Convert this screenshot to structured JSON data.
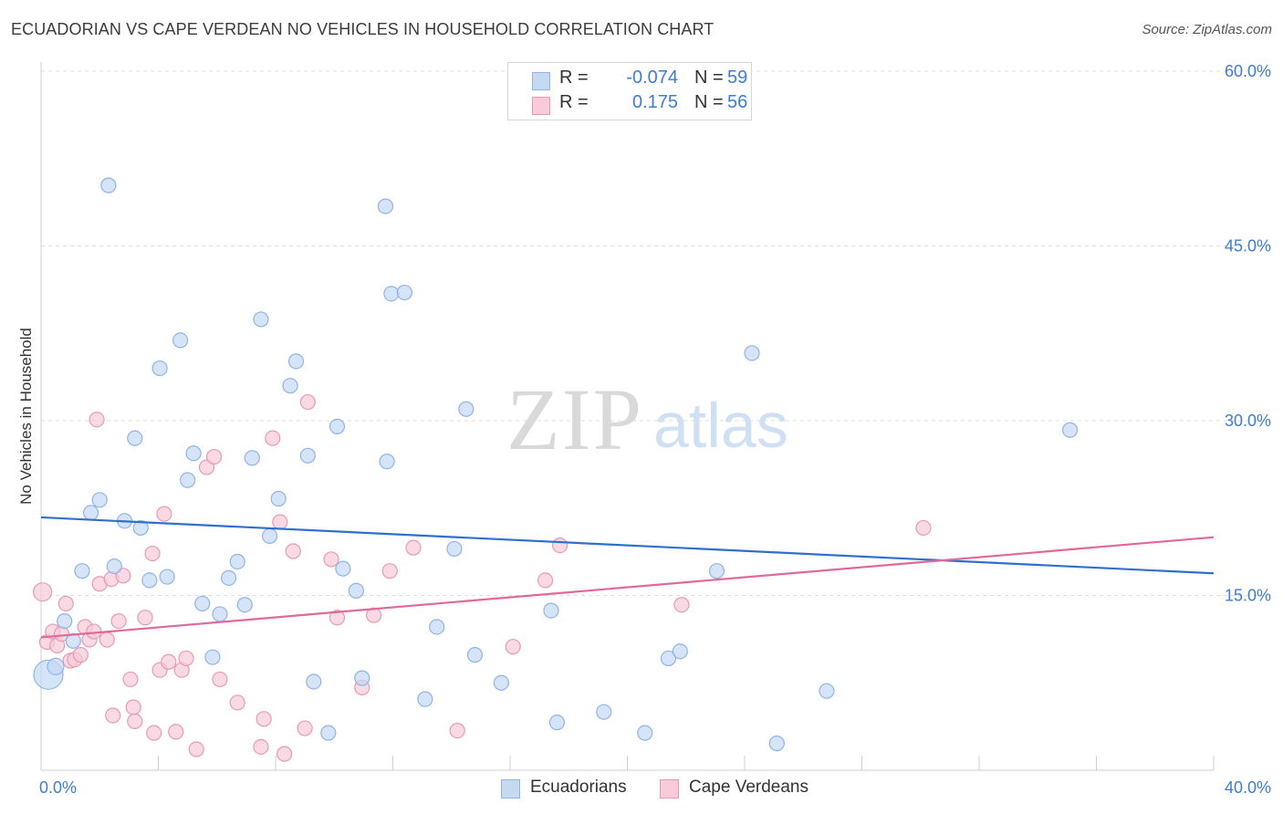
{
  "title": "ECUADORIAN VS CAPE VERDEAN NO VEHICLES IN HOUSEHOLD CORRELATION CHART",
  "source": "Source: ZipAtlas.com",
  "watermark": {
    "zip": "ZIP",
    "atlas": "atlas"
  },
  "stats": {
    "row1": {
      "r_label": "R =",
      "r_value": "-0.074",
      "n_label": "N =",
      "n_value": "59"
    },
    "row2": {
      "r_label": "R =",
      "r_value": "0.175",
      "n_label": "N =",
      "n_value": "56"
    }
  },
  "legend": {
    "ecuadorians": "Ecuadorians",
    "cape_verdeans": "Cape Verdeans"
  },
  "colors": {
    "blue_fill": "#c5d9f3",
    "blue_stroke": "#8fb4e6",
    "blue_line": "#2f6fcf",
    "pink_fill": "#f7cbd8",
    "pink_stroke": "#e89ab3",
    "pink_line": "#e0699a",
    "tick_label": "#3d7dd3",
    "grid": "#dcdcdc"
  },
  "chart_data": {
    "type": "scatter",
    "title": "ECUADORIAN VS CAPE VERDEAN NO VEHICLES IN HOUSEHOLD CORRELATION CHART",
    "xlabel": "",
    "ylabel": "No Vehicles in Household",
    "xlim": [
      0,
      40
    ],
    "ylim": [
      0,
      60
    ],
    "x_tick_labels": [
      "0.0%",
      "40.0%"
    ],
    "y_ticks": [
      15,
      30,
      45,
      60
    ],
    "y_tick_labels": [
      "15.0%",
      "30.0%",
      "45.0%",
      "60.0%"
    ],
    "grid": true,
    "legend_position": "bottom",
    "series": [
      {
        "name": "Ecuadorians",
        "r": -0.074,
        "n": 59,
        "trend": {
          "x": [
            0,
            40
          ],
          "y": [
            21.7,
            16.9
          ]
        },
        "points": [
          [
            0.25,
            8.2,
            16
          ],
          [
            0.5,
            8.9,
            9
          ],
          [
            0.8,
            12.8,
            8
          ],
          [
            1.1,
            11.1,
            8
          ],
          [
            1.4,
            17.1,
            8
          ],
          [
            1.7,
            22.1,
            8
          ],
          [
            2.0,
            23.2,
            8
          ],
          [
            2.3,
            50.2,
            8
          ],
          [
            2.5,
            17.5,
            8
          ],
          [
            2.85,
            21.4,
            8
          ],
          [
            3.2,
            28.5,
            8
          ],
          [
            3.4,
            20.8,
            8
          ],
          [
            3.7,
            16.3,
            8
          ],
          [
            4.05,
            34.5,
            8
          ],
          [
            4.3,
            16.6,
            8
          ],
          [
            4.75,
            36.9,
            8
          ],
          [
            5.0,
            24.9,
            8
          ],
          [
            5.2,
            27.2,
            8
          ],
          [
            5.5,
            14.3,
            8
          ],
          [
            5.85,
            9.7,
            8
          ],
          [
            6.1,
            13.4,
            8
          ],
          [
            6.4,
            16.5,
            8
          ],
          [
            6.7,
            17.9,
            8
          ],
          [
            6.95,
            14.2,
            8
          ],
          [
            7.2,
            26.8,
            8
          ],
          [
            7.5,
            38.7,
            8
          ],
          [
            7.8,
            20.1,
            8
          ],
          [
            8.1,
            23.3,
            8
          ],
          [
            8.5,
            33.0,
            8
          ],
          [
            8.7,
            35.1,
            8
          ],
          [
            9.1,
            27.0,
            8
          ],
          [
            9.3,
            7.6,
            8
          ],
          [
            9.8,
            3.2,
            8
          ],
          [
            10.1,
            29.5,
            8
          ],
          [
            10.3,
            17.3,
            8
          ],
          [
            10.75,
            15.4,
            8
          ],
          [
            10.95,
            7.9,
            8
          ],
          [
            11.8,
            26.5,
            8
          ],
          [
            11.75,
            48.4,
            8
          ],
          [
            11.95,
            40.9,
            8
          ],
          [
            12.4,
            41.0,
            8
          ],
          [
            13.1,
            6.1,
            8
          ],
          [
            13.5,
            12.3,
            8
          ],
          [
            14.1,
            19.0,
            8
          ],
          [
            14.8,
            9.9,
            8
          ],
          [
            14.5,
            31.0,
            8
          ],
          [
            15.7,
            7.5,
            8
          ],
          [
            17.4,
            13.7,
            8
          ],
          [
            17.6,
            4.1,
            8
          ],
          [
            19.2,
            5.0,
            8
          ],
          [
            20.6,
            3.2,
            8
          ],
          [
            21.4,
            9.6,
            8
          ],
          [
            21.8,
            10.2,
            8
          ],
          [
            23.05,
            17.1,
            8
          ],
          [
            23.9,
            56.6,
            8
          ],
          [
            24.25,
            35.8,
            8
          ],
          [
            25.1,
            2.3,
            8
          ],
          [
            26.8,
            6.8,
            8
          ],
          [
            35.1,
            29.2,
            8
          ]
        ]
      },
      {
        "name": "Cape Verdeans",
        "r": 0.175,
        "n": 56,
        "trend": {
          "x": [
            0,
            40
          ],
          "y": [
            11.4,
            20.0
          ]
        },
        "points": [
          [
            0.05,
            15.3,
            10
          ],
          [
            0.2,
            11.0,
            8
          ],
          [
            0.4,
            11.9,
            8
          ],
          [
            0.55,
            10.7,
            8
          ],
          [
            0.7,
            11.7,
            8
          ],
          [
            0.85,
            14.3,
            8
          ],
          [
            1.0,
            9.4,
            8
          ],
          [
            1.15,
            9.5,
            8
          ],
          [
            1.35,
            9.9,
            8
          ],
          [
            1.5,
            12.3,
            8
          ],
          [
            1.65,
            11.2,
            8
          ],
          [
            1.8,
            11.9,
            8
          ],
          [
            1.9,
            30.1,
            8
          ],
          [
            2.0,
            16.0,
            8
          ],
          [
            2.25,
            11.2,
            8
          ],
          [
            2.4,
            16.4,
            8
          ],
          [
            2.45,
            4.7,
            8
          ],
          [
            2.65,
            12.8,
            8
          ],
          [
            2.8,
            16.7,
            8
          ],
          [
            3.05,
            7.8,
            8
          ],
          [
            3.15,
            5.4,
            8
          ],
          [
            3.2,
            4.2,
            8
          ],
          [
            3.55,
            13.1,
            8
          ],
          [
            3.8,
            18.6,
            8
          ],
          [
            3.85,
            3.2,
            8
          ],
          [
            4.05,
            8.6,
            8
          ],
          [
            4.2,
            22.0,
            8
          ],
          [
            4.35,
            9.3,
            8
          ],
          [
            4.6,
            3.3,
            8
          ],
          [
            4.8,
            8.6,
            8
          ],
          [
            4.95,
            9.6,
            8
          ],
          [
            5.3,
            1.8,
            8
          ],
          [
            5.65,
            26.0,
            8
          ],
          [
            5.9,
            26.9,
            8
          ],
          [
            6.1,
            7.8,
            8
          ],
          [
            6.7,
            5.8,
            8
          ],
          [
            7.5,
            2.0,
            8
          ],
          [
            7.6,
            4.4,
            8
          ],
          [
            7.9,
            28.5,
            8
          ],
          [
            8.15,
            21.3,
            8
          ],
          [
            8.3,
            1.4,
            8
          ],
          [
            8.6,
            18.8,
            8
          ],
          [
            9.0,
            3.6,
            8
          ],
          [
            9.1,
            31.6,
            8
          ],
          [
            9.9,
            18.1,
            8
          ],
          [
            10.1,
            13.1,
            8
          ],
          [
            10.95,
            7.1,
            8
          ],
          [
            11.35,
            13.3,
            8
          ],
          [
            11.9,
            17.1,
            8
          ],
          [
            12.7,
            19.1,
            8
          ],
          [
            14.2,
            3.4,
            8
          ],
          [
            16.1,
            10.6,
            8
          ],
          [
            17.2,
            16.3,
            8
          ],
          [
            17.7,
            19.3,
            8
          ],
          [
            21.85,
            14.2,
            8
          ],
          [
            30.1,
            20.8,
            8
          ]
        ]
      }
    ]
  }
}
